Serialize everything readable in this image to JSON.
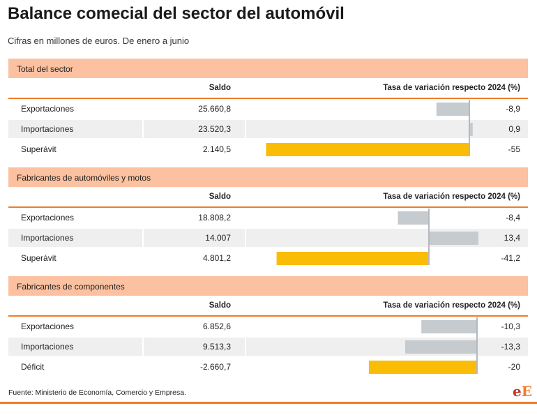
{
  "title": "Balance comecial del sector del automóvil",
  "subtitle": "Cifras en millones de euros. De enero a junio",
  "columns": {
    "saldo": "Saldo",
    "tasa": "Tasa de variación respecto 2024 (%)"
  },
  "colors": {
    "header_bg": "#fbc1a1",
    "accent": "#f07c2a",
    "bar_grey": "#c6cbd0",
    "bar_highlight": "#fbbc05",
    "row_shade": "#efefef"
  },
  "chart_data": [
    {
      "type": "bar",
      "title": "Total del sector",
      "categories": [
        "Exportaciones",
        "Importaciones",
        "Superávit"
      ],
      "saldo_labels": [
        "25.660,8",
        "23.520,3",
        "2.140,5"
      ],
      "saldo": [
        25660.8,
        23520.3,
        2140.5
      ],
      "pct_labels": [
        "-8,9",
        "0,9",
        "-55"
      ],
      "values": [
        -8.9,
        0.9,
        -55
      ],
      "highlight": [
        false,
        false,
        true
      ]
    },
    {
      "type": "bar",
      "title": "Fabricantes de automóviles y motos",
      "categories": [
        "Exportaciones",
        "Importaciones",
        "Superávit"
      ],
      "saldo_labels": [
        "18.808,2",
        "14.007",
        "4.801,2"
      ],
      "saldo": [
        18808.2,
        14007,
        4801.2
      ],
      "pct_labels": [
        "-8,4",
        "13,4",
        "-41,2"
      ],
      "values": [
        -8.4,
        13.4,
        -41.2
      ],
      "highlight": [
        false,
        false,
        true
      ]
    },
    {
      "type": "bar",
      "title": "Fabricantes de componentes",
      "categories": [
        "Exportaciones",
        "Importaciones",
        "Déficit"
      ],
      "saldo_labels": [
        "6.852,6",
        "9.513,3",
        "-2.660,7"
      ],
      "saldo": [
        6852.6,
        9513.3,
        -2660.7
      ],
      "pct_labels": [
        "-10,3",
        "-13,3",
        "-20"
      ],
      "values": [
        -10.3,
        -13.3,
        -20
      ],
      "highlight": [
        false,
        false,
        true
      ]
    }
  ],
  "source": "Fuente: Ministerio de Economía, Comercio y Empresa.",
  "logo": {
    "part1": "e",
    "part2": "E"
  }
}
